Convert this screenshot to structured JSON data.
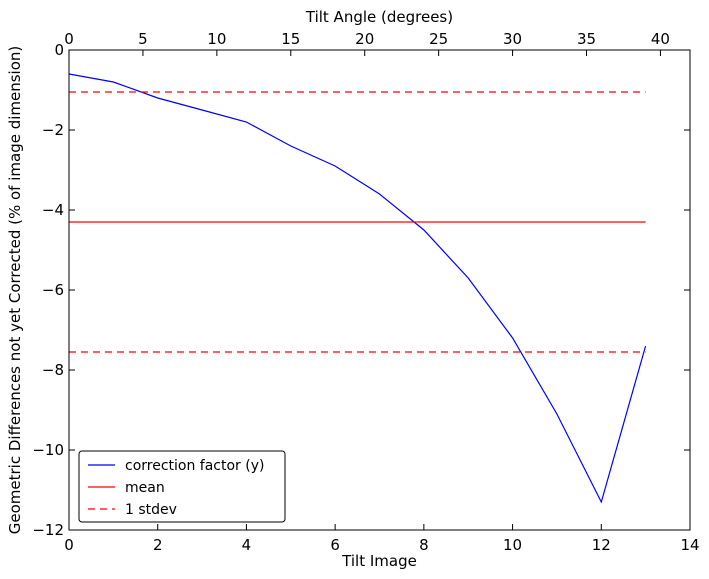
{
  "chart_data": {
    "type": "line",
    "xlabel": "Tilt Image",
    "ylabel": "Geometric Differences not yet Corrected (% of image dimension)",
    "top_xlabel": "Tilt Angle (degrees)",
    "xlim": [
      0,
      14
    ],
    "ylim": [
      -12,
      0
    ],
    "top_xlim": [
      0,
      42
    ],
    "x_ticks": [
      "0",
      "2",
      "4",
      "6",
      "8",
      "10",
      "12",
      "14"
    ],
    "y_ticks": [
      "0",
      "−2",
      "−4",
      "−6",
      "−8",
      "−10",
      "−12"
    ],
    "top_x_ticks": [
      "0",
      "5",
      "10",
      "15",
      "20",
      "25",
      "30",
      "35",
      "40"
    ],
    "grid": false,
    "legend_position": "lower-left",
    "series": [
      {
        "name": "correction factor (y)",
        "color": "#0000ff",
        "style": "solid",
        "x": [
          0,
          1,
          2,
          3,
          4,
          5,
          6,
          7,
          8,
          9,
          10,
          11,
          12,
          13
        ],
        "y": [
          -0.6,
          -0.8,
          -1.2,
          -1.5,
          -1.8,
          -2.4,
          -2.9,
          -3.6,
          -4.5,
          -5.7,
          -7.2,
          -9.1,
          -11.3,
          -7.4
        ]
      },
      {
        "name": "mean",
        "color": "#ff0000",
        "style": "solid",
        "x": [
          0,
          13
        ],
        "y": [
          -4.3,
          -4.3
        ]
      },
      {
        "name": "1 stdev",
        "color": "#ff0000",
        "style": "dashed",
        "x": [
          0,
          13
        ],
        "y": [
          -1.05,
          -1.05
        ]
      },
      {
        "name": "",
        "color": "#ff0000",
        "style": "dashed",
        "x": [
          0,
          13
        ],
        "y": [
          -7.55,
          -7.55
        ]
      }
    ]
  }
}
